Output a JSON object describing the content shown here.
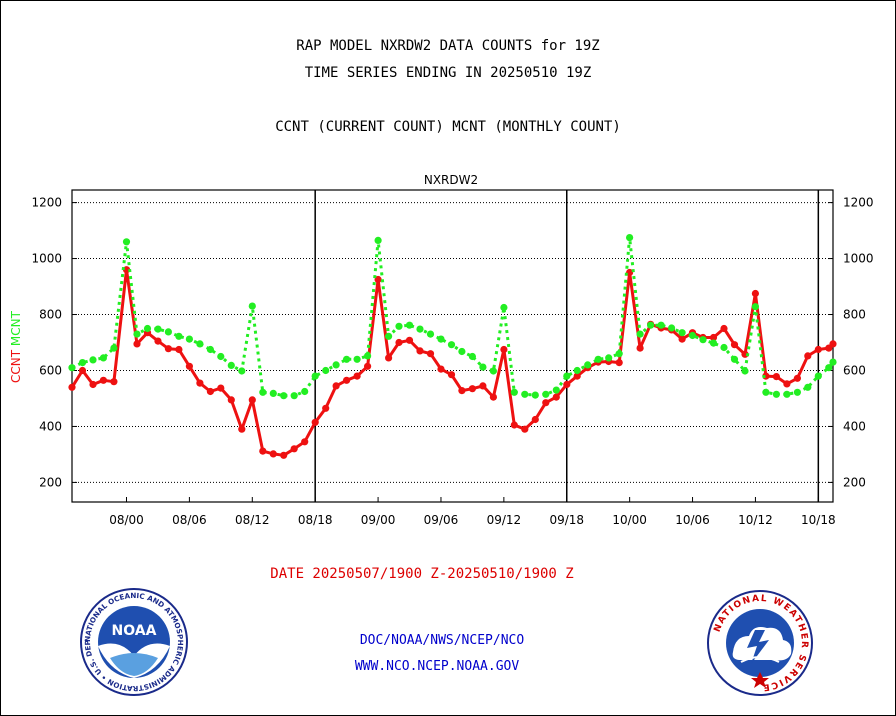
{
  "header": {
    "line1": "RAP MODEL NXRDW2 DATA COUNTS for 19Z",
    "line2": "TIME SERIES ENDING IN 20250510 19Z",
    "line3": "CCNT (CURRENT COUNT) MCNT (MONTHLY COUNT)"
  },
  "footer": {
    "date_range": "DATE 20250507/1900 Z-20250510/1900 Z",
    "org": "DOC/NOAA/NWS/NCEP/NCO",
    "url": "WWW.NCO.NCEP.NOAA.GOV"
  },
  "logos": {
    "noaa_text": "NOAA",
    "noaa_ring": "NATIONAL OCEANIC AND ATMOSPHERIC ADMINISTRATION • U.S. DEPARTMENT OF COMMERCE •",
    "nws_ring": "NATIONAL WEATHER SERVICE"
  },
  "colors": {
    "ccnt": "#ee1111",
    "mcnt": "#22ee22",
    "title_blue": "#0000cc",
    "date_red": "#dd0000"
  },
  "chart_data": {
    "type": "line",
    "title": "NXRDW2",
    "ylabel_parts": [
      {
        "text": "CCNT",
        "color": "#ee1111"
      },
      {
        "text": "MCNT",
        "color": "#22ee22"
      }
    ],
    "x_ticks": [
      "08/00",
      "08/06",
      "08/12",
      "08/18",
      "09/00",
      "09/06",
      "09/12",
      "09/18",
      "10/00",
      "10/06",
      "10/12",
      "10/18"
    ],
    "y_ticks": [
      200,
      400,
      600,
      800,
      1000,
      1200
    ],
    "ylim": [
      130,
      1245
    ],
    "x_range_hours": [
      -5.2,
      67.4
    ],
    "day_separators_hours": [
      18,
      42,
      66
    ],
    "x_unit": "hours from 08/00",
    "grid": true,
    "series": [
      {
        "name": "CCNT",
        "color": "#ee1111",
        "x": [
          -5.2,
          -4.2,
          -3.2,
          -2.2,
          -1.2,
          0,
          1,
          2,
          3,
          4,
          5,
          6,
          7,
          8,
          9,
          10,
          11,
          12,
          13,
          14,
          15,
          16,
          17,
          18,
          19,
          20,
          21,
          22,
          23,
          24,
          25,
          26,
          27,
          28,
          29,
          30,
          31,
          32,
          33,
          34,
          35,
          36,
          37,
          38,
          39,
          40,
          41,
          42,
          43,
          44,
          45,
          46,
          47,
          48,
          49,
          50,
          51,
          52,
          53,
          54,
          55,
          56,
          57,
          58,
          59,
          60,
          61,
          62,
          63,
          64,
          65,
          66,
          67,
          67.4
        ],
        "values": [
          540,
          600,
          550,
          565,
          560,
          960,
          695,
          735,
          705,
          678,
          675,
          615,
          555,
          525,
          537,
          495,
          390,
          495,
          312,
          302,
          297,
          320,
          345,
          415,
          465,
          545,
          565,
          580,
          615,
          925,
          645,
          700,
          708,
          670,
          660,
          605,
          585,
          528,
          535,
          545,
          505,
          675,
          405,
          390,
          425,
          485,
          505,
          550,
          580,
          610,
          630,
          632,
          628,
          950,
          680,
          765,
          752,
          745,
          712,
          735,
          718,
          718,
          750,
          692,
          658,
          875,
          580,
          578,
          552,
          572,
          652,
          675,
          680,
          695
        ]
      },
      {
        "name": "MCNT",
        "color": "#22ee22",
        "x": [
          -5.2,
          -4.2,
          -3.2,
          -2.2,
          -1.2,
          0,
          1,
          2,
          3,
          4,
          5,
          6,
          7,
          8,
          9,
          10,
          11,
          12,
          13,
          14,
          15,
          16,
          17,
          18,
          19,
          20,
          21,
          22,
          23,
          24,
          25,
          26,
          27,
          28,
          29,
          30,
          31,
          32,
          33,
          34,
          35,
          36,
          37,
          38,
          39,
          40,
          41,
          42,
          43,
          44,
          45,
          46,
          47,
          48,
          49,
          50,
          51,
          52,
          53,
          54,
          55,
          56,
          57,
          58,
          59,
          60,
          61,
          62,
          63,
          64,
          65,
          66,
          67,
          67.4
        ],
        "values": [
          610,
          628,
          638,
          645,
          680,
          1060,
          730,
          750,
          748,
          738,
          722,
          712,
          695,
          675,
          650,
          618,
          598,
          830,
          522,
          518,
          510,
          510,
          525,
          580,
          600,
          620,
          640,
          640,
          652,
          1065,
          722,
          758,
          762,
          748,
          730,
          712,
          692,
          668,
          650,
          612,
          598,
          825,
          522,
          515,
          512,
          515,
          530,
          580,
          600,
          620,
          640,
          645,
          660,
          1075,
          730,
          762,
          762,
          752,
          735,
          725,
          710,
          698,
          682,
          640,
          598,
          828,
          522,
          515,
          515,
          522,
          540,
          580,
          610,
          630
        ]
      }
    ]
  }
}
